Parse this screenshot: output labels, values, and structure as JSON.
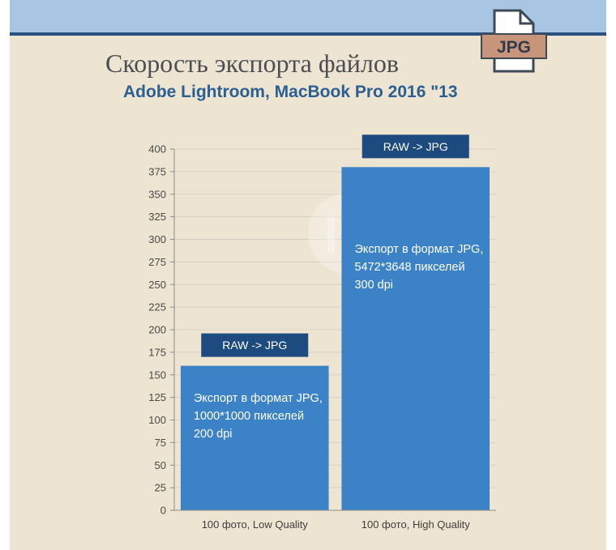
{
  "icon": {
    "name": "jpg-file-icon",
    "label": "JPG",
    "label_bg": "#c8957a",
    "stroke": "#3c4a57"
  },
  "watermark": {
    "text": "IP"
  },
  "colors": {
    "bar": "#3c82c7",
    "badge": "#1d4a7f",
    "grid": "#d7d0c2",
    "axis": "#8e8a84"
  },
  "chart_data": {
    "type": "bar",
    "title": "Скорость экспорта файлов",
    "subtitle": "Adobe Lightroom, MacBook Pro 2016 \"13",
    "xlabel": "",
    "ylabel": "",
    "ylim": [
      0,
      400
    ],
    "yticks": [
      0,
      25,
      50,
      75,
      100,
      125,
      150,
      175,
      200,
      225,
      250,
      275,
      300,
      325,
      350,
      375,
      400
    ],
    "grid": true,
    "categories": [
      "100 фото, Low Quality",
      "100 фото, High Quality"
    ],
    "values": [
      160,
      380
    ],
    "badges": [
      "RAW -> JPG",
      "RAW -> JPG"
    ],
    "annotations": [
      [
        "Экспорт в формат JPG,",
        "1000*1000 пикселей",
        "200 dpi"
      ],
      [
        "Экспорт в формат JPG,",
        "5472*3648 пикселей",
        "300 dpi"
      ]
    ]
  }
}
